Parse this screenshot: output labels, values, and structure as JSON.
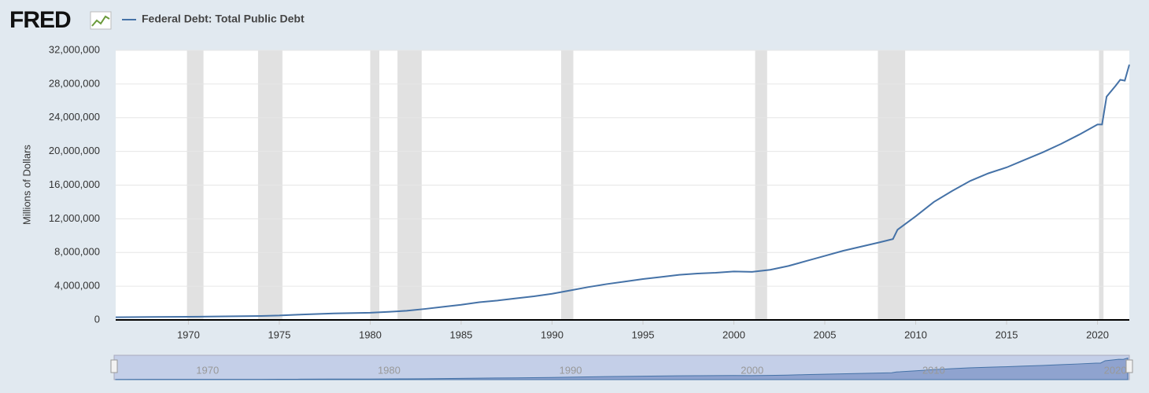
{
  "chart_data": {
    "type": "line",
    "logo": "FRED",
    "ylabel": "Millions of Dollars",
    "x": [
      1966,
      1968,
      1970,
      1972,
      1974,
      1975,
      1976,
      1978,
      1980,
      1981,
      1982,
      1983,
      1984,
      1985,
      1986,
      1987,
      1988,
      1989,
      1990,
      1991,
      1992,
      1993,
      1994,
      1995,
      1996,
      1997,
      1998,
      1999,
      2000,
      2001,
      2002,
      2003,
      2004,
      2005,
      2006,
      2007,
      2008,
      2008.75,
      2009,
      2010,
      2011,
      2012,
      2013,
      2014,
      2015,
      2016,
      2017,
      2018,
      2019,
      2020,
      2020.25,
      2020.5,
      2021,
      2021.25,
      2021.5,
      2021.75
    ],
    "series": [
      {
        "name": "Federal Debt: Total Public Debt",
        "color": "#4572a7",
        "values": [
          320000,
          345000,
          370000,
          425000,
          470000,
          520000,
          620000,
          770000,
          850000,
          960000,
          1080000,
          1300000,
          1550000,
          1800000,
          2100000,
          2300000,
          2550000,
          2800000,
          3100000,
          3500000,
          3900000,
          4250000,
          4550000,
          4850000,
          5100000,
          5350000,
          5500000,
          5600000,
          5750000,
          5700000,
          5950000,
          6400000,
          7000000,
          7600000,
          8200000,
          8700000,
          9200000,
          9600000,
          10700000,
          12300000,
          14000000,
          15300000,
          16500000,
          17400000,
          18100000,
          19000000,
          19900000,
          20900000,
          22000000,
          23200000,
          23200000,
          26500000,
          27800000,
          28500000,
          28400000,
          30300000
        ]
      }
    ],
    "recessions": [
      [
        1969.92,
        1970.83
      ],
      [
        1973.83,
        1975.17
      ],
      [
        1980.0,
        1980.5
      ],
      [
        1981.5,
        1982.83
      ],
      [
        1990.5,
        1991.17
      ],
      [
        2001.17,
        2001.83
      ],
      [
        2007.92,
        2009.42
      ],
      [
        2020.08,
        2020.33
      ]
    ],
    "xlim": [
      1966,
      2021.75
    ],
    "xticks": [
      1970,
      1975,
      1980,
      1985,
      1990,
      1995,
      2000,
      2005,
      2010,
      2015,
      2020
    ],
    "navigator_xticks": [
      1970,
      1980,
      1990,
      2000,
      2010,
      2020
    ],
    "ylim": [
      0,
      32000000
    ],
    "yticks": [
      0,
      {
        "value": 4000000,
        "label": "4,000,000"
      },
      {
        "value": 8000000,
        "label": "8,000,000"
      },
      {
        "value": 12000000,
        "label": "12,000,000"
      },
      {
        "value": 16000000,
        "label": "16,000,000"
      },
      {
        "value": 20000000,
        "label": "20,000,000"
      },
      {
        "value": 24000000,
        "label": "24,000,000"
      },
      {
        "value": 28000000,
        "label": "28,000,000"
      },
      {
        "value": 32000000,
        "label": "32,000,000"
      }
    ],
    "grid": true
  }
}
